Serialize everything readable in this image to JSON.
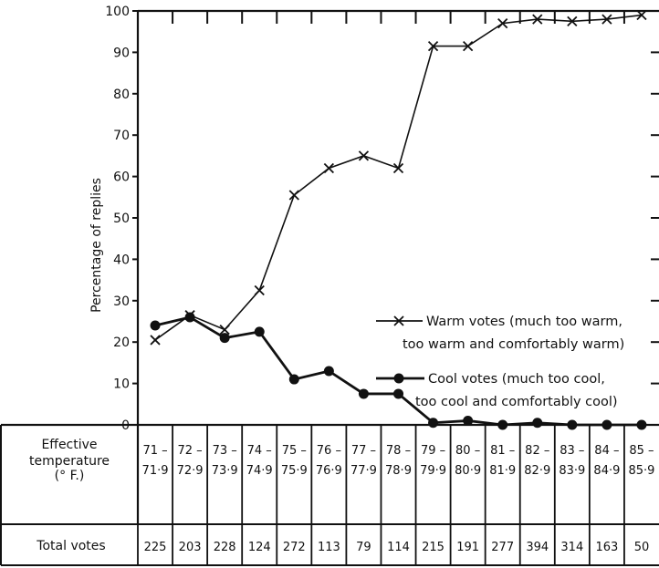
{
  "chart_data": {
    "type": "line",
    "title": "",
    "xlabel": "Effective temperature (° F.)",
    "ylabel": "Percentage of replies",
    "ylim": [
      0,
      100
    ],
    "yticks": [
      0,
      10,
      20,
      30,
      40,
      50,
      60,
      70,
      80,
      90,
      100
    ],
    "grid": false,
    "legend_position": "right",
    "categories": [
      {
        "top": "71 –",
        "bottom": "71·9"
      },
      {
        "top": "72 –",
        "bottom": "72·9"
      },
      {
        "top": "73 –",
        "bottom": "73·9"
      },
      {
        "top": "74 –",
        "bottom": "74·9"
      },
      {
        "top": "75 –",
        "bottom": "75·9"
      },
      {
        "top": "76 –",
        "bottom": "76·9"
      },
      {
        "top": "77 –",
        "bottom": "77·9"
      },
      {
        "top": "78 –",
        "bottom": "78·9"
      },
      {
        "top": "79 –",
        "bottom": "79·9"
      },
      {
        "top": "80 –",
        "bottom": "80·9"
      },
      {
        "top": "81 –",
        "bottom": "81·9"
      },
      {
        "top": "82 –",
        "bottom": "82·9"
      },
      {
        "top": "83 –",
        "bottom": "83·9"
      },
      {
        "top": "84 –",
        "bottom": "84·9"
      },
      {
        "top": "85 –",
        "bottom": "85·9"
      }
    ],
    "series": [
      {
        "key": "warm",
        "marker": "cross",
        "legend_lines": [
          "Warm votes (much too warm,",
          "too warm and comfortably warm)"
        ],
        "values": [
          20.5,
          26.5,
          23,
          32.5,
          55.5,
          62,
          65,
          62,
          91.5,
          91.5,
          97,
          98,
          97.5,
          98,
          99
        ]
      },
      {
        "key": "cool",
        "marker": "dot",
        "legend_lines": [
          "Cool votes (much too cool,",
          "too cool and comfortably cool)"
        ],
        "values": [
          24,
          26,
          21,
          22.5,
          11,
          13,
          7.5,
          7.5,
          0.5,
          1,
          0,
          0.5,
          0,
          0,
          0
        ]
      }
    ],
    "table": {
      "row_header_lines": [
        "Effective",
        "temperature",
        "(° F.)"
      ],
      "totals_label": "Total votes",
      "totals": [
        225,
        203,
        228,
        124,
        272,
        113,
        79,
        114,
        215,
        191,
        277,
        394,
        314,
        163,
        50
      ]
    }
  }
}
